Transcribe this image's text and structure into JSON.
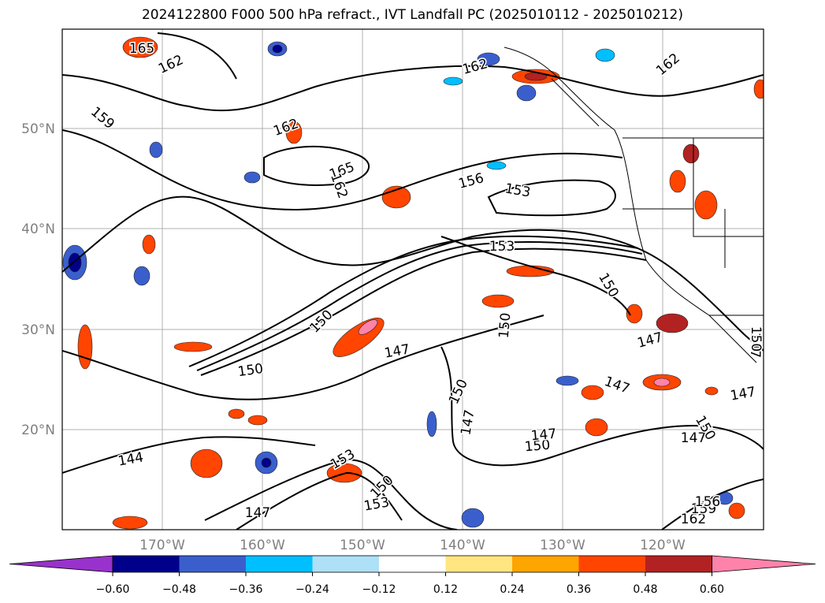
{
  "title": "2024122800 F000 500 hPa refract., IVT Landfall PC (2025010112 - 2025010212)",
  "lat_labels": [
    "50°N",
    "40°N",
    "30°N",
    "20°N"
  ],
  "lon_labels": [
    "170°W",
    "160°W",
    "150°W",
    "140°W",
    "130°W",
    "120°W"
  ],
  "colorbar": {
    "ticks": [
      "−0.60",
      "−0.48",
      "−0.36",
      "−0.24",
      "−0.12",
      "0.12",
      "0.24",
      "0.36",
      "0.48",
      "0.60"
    ],
    "colors": [
      "#9932cc",
      "#00008b",
      "#3a5fcd",
      "#00bfff",
      "#aee0f8",
      "#ffffff",
      "#ffe680",
      "#ffa500",
      "#ff4500",
      "#b22222",
      "#ff82ab"
    ]
  },
  "contour_labels": [
    {
      "text": "165"
    },
    {
      "text": "162"
    },
    {
      "text": "159"
    },
    {
      "text": "162"
    },
    {
      "text": "165"
    },
    {
      "text": "162"
    },
    {
      "text": "156"
    },
    {
      "text": "153"
    },
    {
      "text": "153"
    },
    {
      "text": "162"
    },
    {
      "text": "162"
    },
    {
      "text": "150"
    },
    {
      "text": "150"
    },
    {
      "text": "147"
    },
    {
      "text": "150"
    },
    {
      "text": "150"
    },
    {
      "text": "147"
    },
    {
      "text": "147"
    },
    {
      "text": "150"
    },
    {
      "text": "147"
    },
    {
      "text": "150"
    },
    {
      "text": "147"
    },
    {
      "text": "147"
    },
    {
      "text": "144"
    },
    {
      "text": "153"
    },
    {
      "text": "150"
    },
    {
      "text": "153"
    },
    {
      "text": "147"
    },
    {
      "text": "147"
    },
    {
      "text": "150"
    },
    {
      "text": "162"
    },
    {
      "text": "159"
    },
    {
      "text": "156"
    },
    {
      "text": "147"
    },
    {
      "text": "150"
    }
  ]
}
